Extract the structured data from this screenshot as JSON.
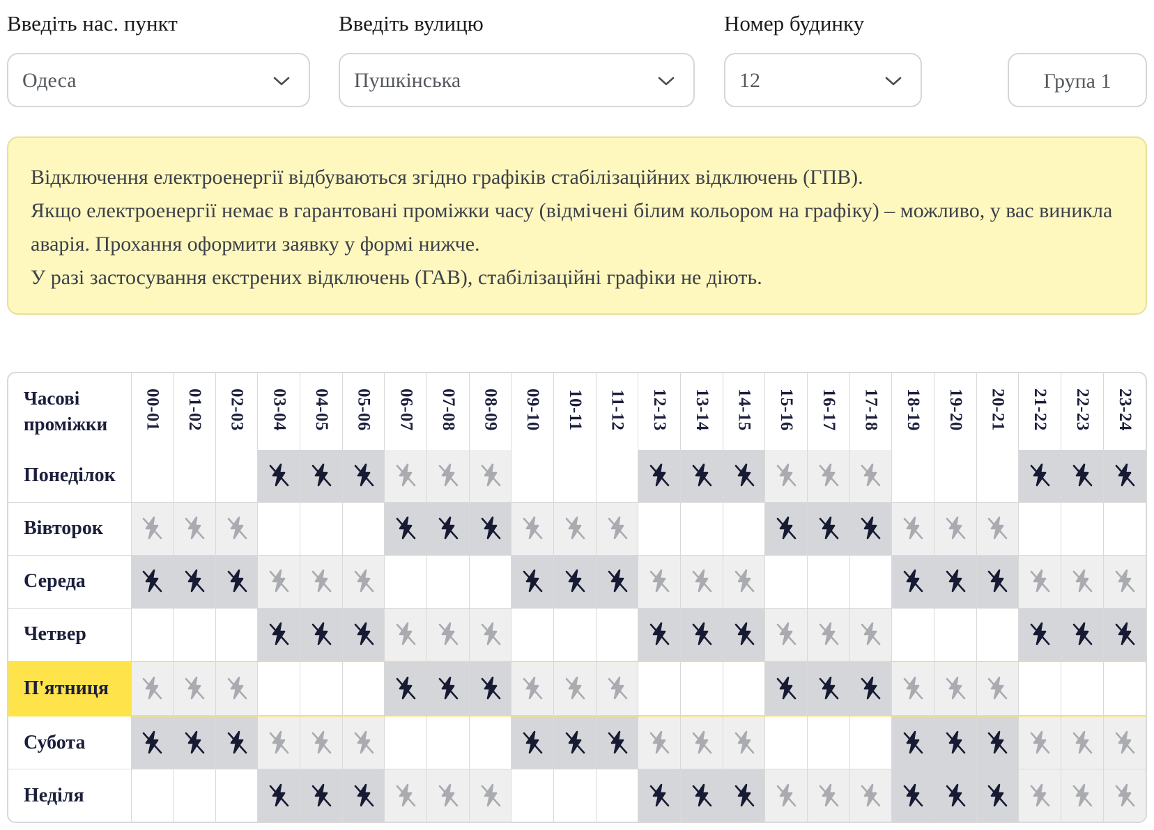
{
  "fields": {
    "city": {
      "label": "Введіть нас. пункт",
      "value": "Одеса"
    },
    "street": {
      "label": "Введіть вулицю",
      "value": "Пушкінська"
    },
    "house": {
      "label": "Номер будинку",
      "value": "12"
    },
    "group": {
      "label": "Група 1"
    }
  },
  "notice": {
    "line1": "Відключення електроенергії відбуваються згідно графіків стабілізаційних відключень (ГПВ).",
    "line2": "Якщо електроенергії немає в гарантовані проміжки часу (відмічені білим кольором на графіку) – можливо, у вас виникла аварія. Прохання оформити заявку у формі нижче.",
    "line3": "У разі застосування екстрених відключень (ГАВ), стабілізаційні графіки не діють."
  },
  "schedule": {
    "corner_label": "Часові проміжки",
    "hours": [
      "00-01",
      "01-02",
      "02-03",
      "03-04",
      "04-05",
      "05-06",
      "06-07",
      "07-08",
      "08-09",
      "09-10",
      "10-11",
      "11-12",
      "12-13",
      "13-14",
      "14-15",
      "15-16",
      "16-17",
      "17-18",
      "18-19",
      "19-20",
      "20-21",
      "21-22",
      "22-23",
      "23-24"
    ],
    "today_index": 4,
    "legend_colors": {
      "definite": "#d5d6d9",
      "possible": "#efefef",
      "on": "#ffffff",
      "today": "#ffe34a"
    },
    "icon": "power-off-icon",
    "days": [
      {
        "name": "Понеділок",
        "cells": "wwwdddpppwwwdddpppwwwddd"
      },
      {
        "name": "Вівторок",
        "cells": "pppwwwdddpppwwwdddpppwww"
      },
      {
        "name": "Середа",
        "cells": "dddpppwwwdddpppwwwdddppp"
      },
      {
        "name": "Четвер",
        "cells": "wwwdddpppwwwdddpppwwwddd"
      },
      {
        "name": "П'ятниця",
        "cells": "pppwwwdddpppwwwdddpppwww"
      },
      {
        "name": "Субота",
        "cells": "dddpppwwwdddpppwwwdddppp"
      },
      {
        "name": "Неділя",
        "cells": "wwwdddpppwwwdddpppdddppp"
      }
    ]
  }
}
